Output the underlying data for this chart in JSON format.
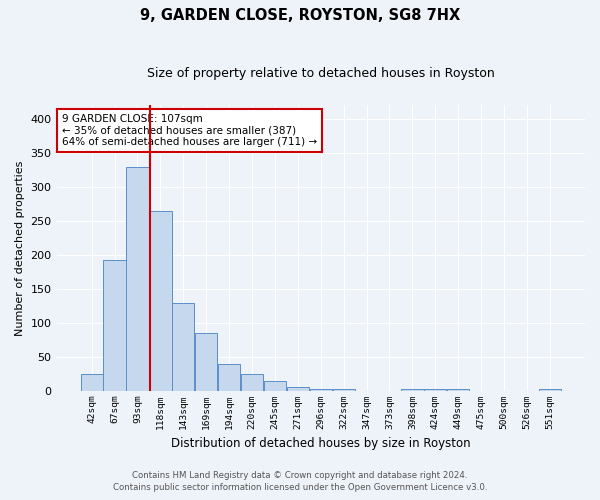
{
  "title1": "9, GARDEN CLOSE, ROYSTON, SG8 7HX",
  "title2": "Size of property relative to detached houses in Royston",
  "xlabel": "Distribution of detached houses by size in Royston",
  "ylabel": "Number of detached properties",
  "bar_labels": [
    "42sqm",
    "67sqm",
    "93sqm",
    "118sqm",
    "143sqm",
    "169sqm",
    "194sqm",
    "220sqm",
    "245sqm",
    "271sqm",
    "296sqm",
    "322sqm",
    "347sqm",
    "373sqm",
    "398sqm",
    "424sqm",
    "449sqm",
    "475sqm",
    "500sqm",
    "526sqm",
    "551sqm"
  ],
  "bar_values": [
    25,
    193,
    330,
    265,
    130,
    85,
    40,
    26,
    15,
    6,
    4,
    3,
    0,
    0,
    4,
    4,
    4,
    0,
    0,
    0,
    3
  ],
  "annotation_text": "9 GARDEN CLOSE: 107sqm\n← 35% of detached houses are smaller (387)\n64% of semi-detached houses are larger (711) →",
  "bar_color": "#c5d8ee",
  "bar_edge_color": "#5b8fc9",
  "line_color": "#cc0000",
  "annotation_box_edge": "#cc0000",
  "background_color": "#eef2f9",
  "grid_color": "#ffffff",
  "ylim": [
    0,
    420
  ],
  "yticks": [
    0,
    50,
    100,
    150,
    200,
    250,
    300,
    350,
    400
  ],
  "footnote1": "Contains HM Land Registry data © Crown copyright and database right 2024.",
  "footnote2": "Contains public sector information licensed under the Open Government Licence v3.0."
}
